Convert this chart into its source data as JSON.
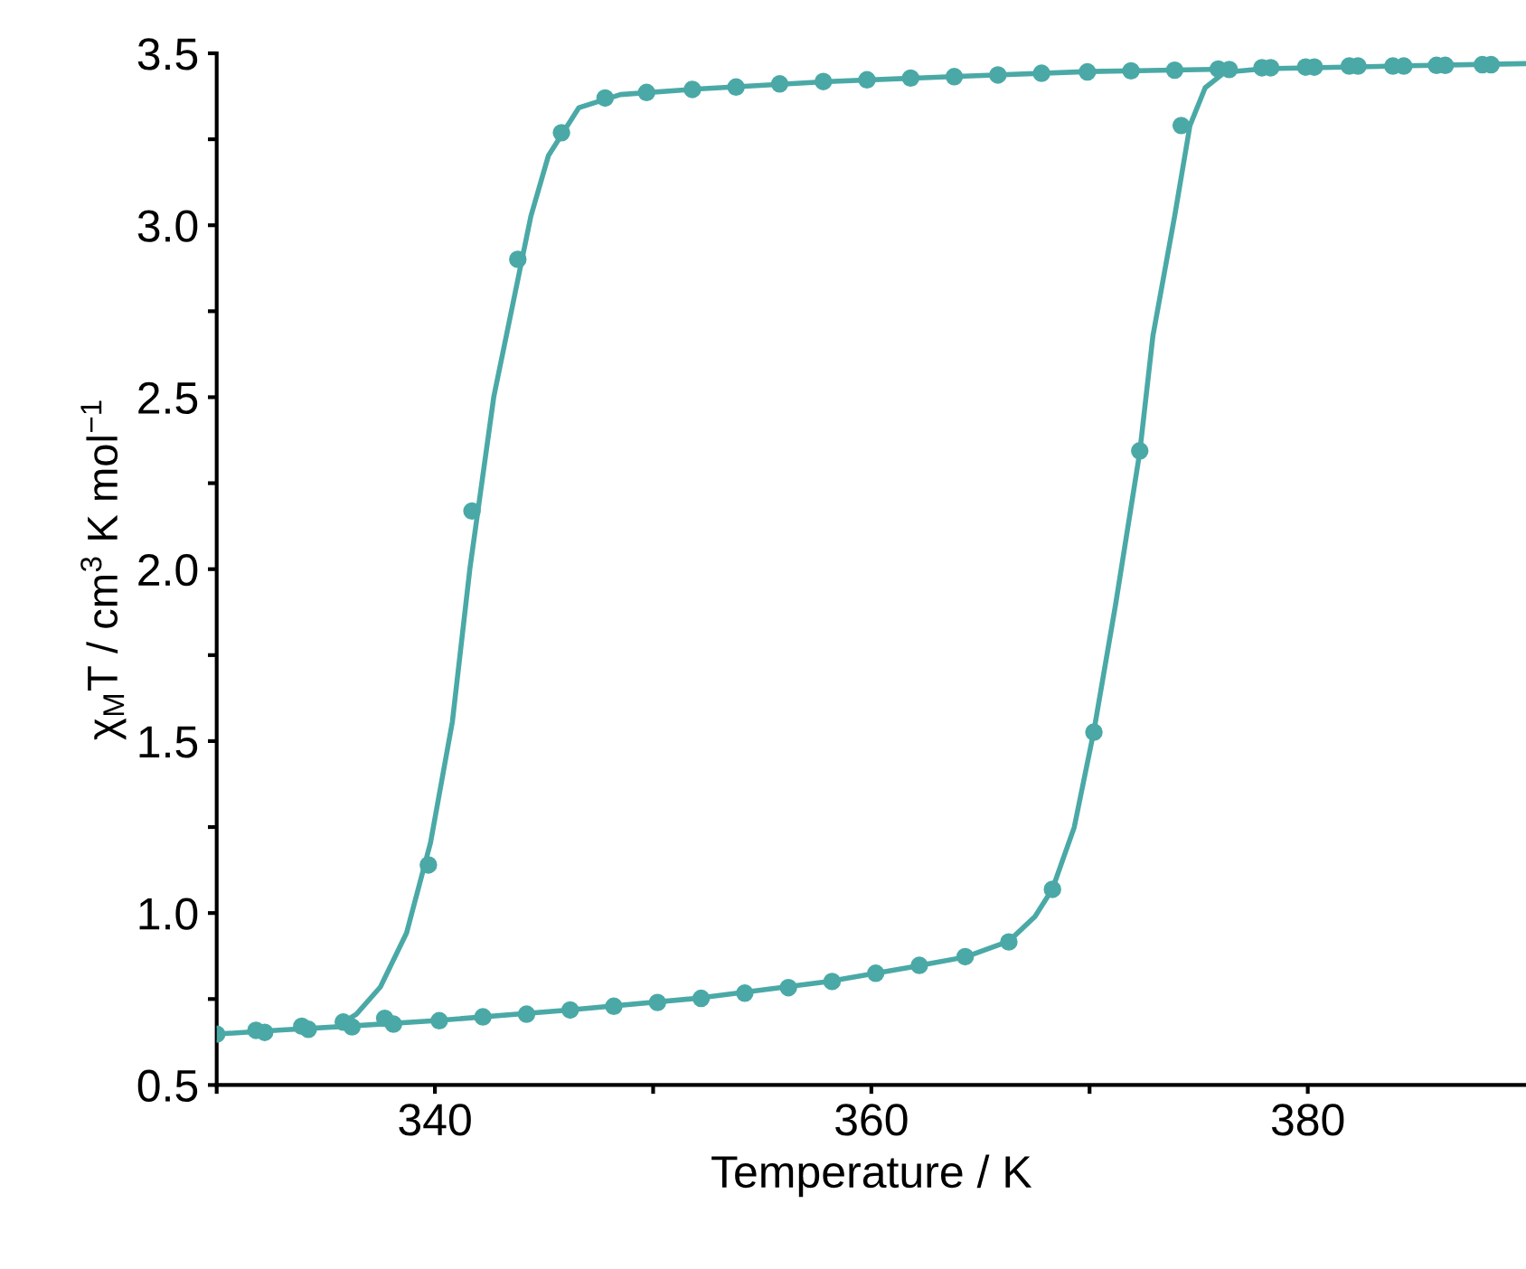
{
  "chart_data": {
    "type": "scatter",
    "xlabel": "Temperature / K",
    "ylabel": "χ$_{M}$T / cm$^{3}$ K mol$^{−1}$",
    "xlim": [
      330,
      390
    ],
    "ylim": [
      0.5,
      3.5
    ],
    "xticks": [
      {
        "value": 330,
        "label": null
      },
      340,
      {
        "value": 350,
        "label": null
      },
      360,
      {
        "value": 370,
        "label": null
      },
      380
    ],
    "yticks": [
      0.5,
      {
        "value": 0.75,
        "label": null
      },
      {
        "value": 1.0,
        "label": "1.0"
      },
      {
        "value": 1.25,
        "label": null
      },
      1.5,
      {
        "value": 1.75,
        "label": null
      },
      {
        "value": 2.0,
        "label": "2.0"
      },
      {
        "value": 2.25,
        "label": null
      },
      2.5,
      {
        "value": 2.75,
        "label": null
      },
      {
        "value": 3.0,
        "label": "3.0"
      },
      {
        "value": 3.25,
        "label": null
      },
      3.5
    ],
    "grid": false,
    "legend": false,
    "series": [
      {
        "marker": "circle",
        "color": "#4aa9a6",
        "x": [
          330.0,
          331.8,
          332.2,
          333.9,
          334.2,
          335.8,
          336.2,
          337.7,
          338.1,
          340.2,
          342.2,
          344.2,
          346.2,
          348.2,
          350.2,
          352.2,
          354.2,
          356.2,
          358.2,
          360.2,
          362.2,
          364.3,
          366.3,
          368.3,
          370.2,
          372.3,
          374.2,
          375.9,
          376.4,
          377.9,
          378.3,
          379.9,
          380.3,
          381.9,
          382.3,
          383.9,
          384.4,
          385.9,
          386.3,
          388.0,
          388.4,
          339.7,
          341.7,
          343.8,
          345.8,
          347.8,
          349.7,
          351.8,
          353.8,
          355.8,
          357.8,
          359.8,
          361.8,
          363.8,
          365.8,
          367.8,
          369.9,
          371.9,
          373.9
        ],
        "values": [
          0.648,
          0.659,
          0.653,
          0.671,
          0.662,
          0.683,
          0.669,
          0.694,
          0.677,
          0.687,
          0.698,
          0.706,
          0.718,
          0.729,
          0.74,
          0.752,
          0.767,
          0.783,
          0.801,
          0.825,
          0.848,
          0.873,
          0.916,
          1.069,
          1.526,
          2.344,
          3.29,
          3.454,
          3.453,
          3.458,
          3.458,
          3.46,
          3.46,
          3.463,
          3.463,
          3.463,
          3.463,
          3.465,
          3.465,
          3.467,
          3.467,
          1.14,
          2.169,
          2.901,
          3.269,
          3.37,
          3.386,
          3.395,
          3.402,
          3.411,
          3.418,
          3.423,
          3.428,
          3.432,
          3.437,
          3.442,
          3.446,
          3.449,
          3.451
        ]
      },
      {
        "type": "line",
        "marker": "none",
        "line_style": "solid",
        "color": "#4aa9a6",
        "x": [
          330.0,
          333.0,
          336.0,
          340.0,
          346.0,
          352.0,
          358.0,
          362.0,
          364.3,
          366.3,
          367.5,
          368.3,
          369.3,
          370.2,
          371.2,
          372.3,
          372.9,
          373.9,
          374.6,
          375.3,
          376.2,
          378.0,
          384.0,
          390.0
        ],
        "values": [
          0.648,
          0.66,
          0.671,
          0.687,
          0.717,
          0.752,
          0.801,
          0.845,
          0.872,
          0.918,
          0.99,
          1.07,
          1.25,
          1.53,
          1.9,
          2.34,
          2.677,
          3.027,
          3.29,
          3.4,
          3.445,
          3.455,
          3.463,
          3.47
        ]
      },
      {
        "type": "line",
        "marker": "none",
        "line_style": "solid",
        "color": "#4aa9a6",
        "x": [
          335.8,
          336.4,
          337.5,
          338.7,
          339.8,
          340.8,
          341.6,
          342.7,
          344.4,
          345.2,
          346.6,
          348.5,
          352.0,
          358.0,
          364.0,
          370.0,
          375.5
        ],
        "values": [
          0.682,
          0.706,
          0.785,
          0.942,
          1.205,
          1.556,
          2.0,
          2.502,
          3.027,
          3.202,
          3.342,
          3.38,
          3.396,
          3.418,
          3.433,
          3.447,
          3.453
        ]
      }
    ]
  }
}
